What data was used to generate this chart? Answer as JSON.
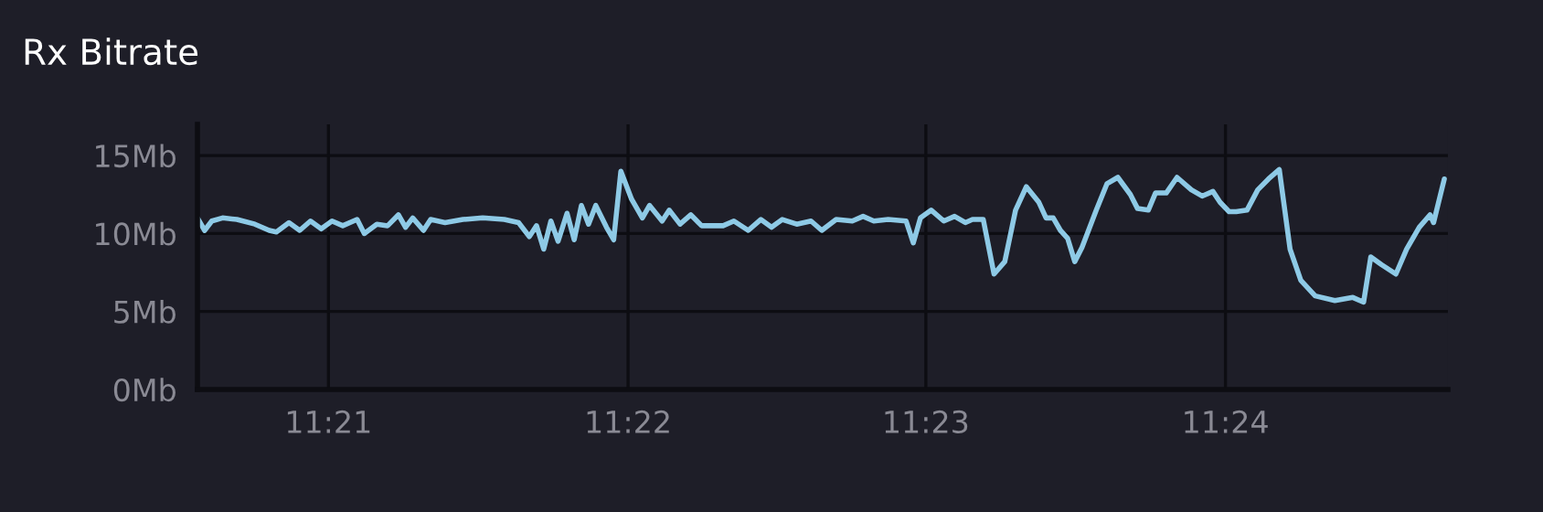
{
  "chart_data": {
    "type": "line",
    "title": "Rx Bitrate",
    "x": [
      11.3427,
      11.3431,
      11.3435,
      11.3441,
      11.3449,
      11.3459,
      11.3467,
      11.3471,
      11.3478,
      11.3484,
      11.349,
      11.3496,
      11.3502,
      11.3508,
      11.3516,
      11.352,
      11.3527,
      11.3533,
      11.3539,
      11.3543,
      11.3547,
      11.3553,
      11.3557,
      11.3565,
      11.3575,
      11.3586,
      11.3598,
      11.3606,
      11.3612,
      11.3616,
      11.362,
      11.3624,
      11.3628,
      11.3633,
      11.3637,
      11.3641,
      11.3645,
      11.3649,
      11.3655,
      11.3659,
      11.3663,
      11.3669,
      11.3675,
      11.3679,
      11.3686,
      11.369,
      11.3696,
      11.3702,
      11.3708,
      11.372,
      11.3726,
      11.3734,
      11.3741,
      11.3747,
      11.3753,
      11.3761,
      11.3769,
      11.3775,
      11.3783,
      11.3792,
      11.3798,
      11.3804,
      11.3812,
      11.3822,
      11.3826,
      11.383,
      11.3836,
      11.3843,
      11.3849,
      11.3855,
      11.3859,
      11.3865,
      11.3871,
      11.3877,
      11.3883,
      11.3889,
      11.3896,
      11.39,
      11.3904,
      11.3908,
      11.3912,
      11.3916,
      11.392,
      11.3928,
      11.3934,
      11.394,
      11.3947,
      11.3951,
      11.3957,
      11.3961,
      11.3967,
      11.3973,
      11.3981,
      11.3987,
      11.3993,
      11.3997,
      11.4002,
      11.4006,
      11.4012,
      11.4018,
      11.4024,
      11.403,
      11.4036,
      11.4042,
      11.405,
      11.4061,
      11.4071,
      11.4077,
      11.4081,
      11.4087,
      11.4095,
      11.4101,
      11.4108,
      11.4114,
      11.4116,
      11.4122
    ],
    "series": [
      {
        "color": "#8ecae6",
        "values": [
          11,
          10.2,
          10.8,
          11,
          10.9,
          10.6,
          10.2,
          10.1,
          10.7,
          10.2,
          10.8,
          10.3,
          10.8,
          10.5,
          10.9,
          10,
          10.6,
          10.5,
          11.2,
          10.4,
          11,
          10.2,
          10.9,
          10.7,
          10.9,
          11,
          10.9,
          10.7,
          9.8,
          10.5,
          9,
          10.8,
          9.5,
          11.3,
          9.6,
          11.8,
          10.6,
          11.8,
          10.4,
          9.6,
          14,
          12.2,
          11,
          11.8,
          10.8,
          11.5,
          10.6,
          11.2,
          10.5,
          10.5,
          10.8,
          10.2,
          10.9,
          10.4,
          10.9,
          10.6,
          10.8,
          10.2,
          10.9,
          10.8,
          11.1,
          10.8,
          10.9,
          10.8,
          9.4,
          11,
          11.5,
          10.8,
          11.1,
          10.7,
          10.9,
          10.9,
          7.4,
          8.2,
          11.5,
          13,
          12,
          11,
          11,
          10.2,
          9.7,
          8.2,
          9.1,
          11.5,
          13.2,
          13.6,
          12.5,
          11.6,
          11.5,
          12.6,
          12.6,
          13.6,
          12.8,
          12.4,
          12.7,
          12,
          11.4,
          11.4,
          11.5,
          12.8,
          13.5,
          14.1,
          9,
          7,
          6,
          5.7,
          5.9,
          5.6,
          8.5,
          8,
          7.4,
          9,
          10.4,
          11.2,
          10.7,
          13.5
        ]
      }
    ],
    "xlim": [
      11.3427,
      11.4124
    ],
    "xticks": [
      {
        "value": 11.35,
        "label": "11:21"
      },
      {
        "value": 11.3667,
        "label": "11:22"
      },
      {
        "value": 11.3833,
        "label": "11:23"
      },
      {
        "value": 11.4,
        "label": "11:24"
      }
    ],
    "ylim": [
      0,
      17
    ],
    "yticks": [
      {
        "value": 0,
        "label": "0Mb"
      },
      {
        "value": 5,
        "label": "5Mb"
      },
      {
        "value": 10,
        "label": "10Mb"
      },
      {
        "value": 15,
        "label": "15Mb"
      }
    ],
    "grid": true,
    "line_style": "solid",
    "marker": "none"
  }
}
